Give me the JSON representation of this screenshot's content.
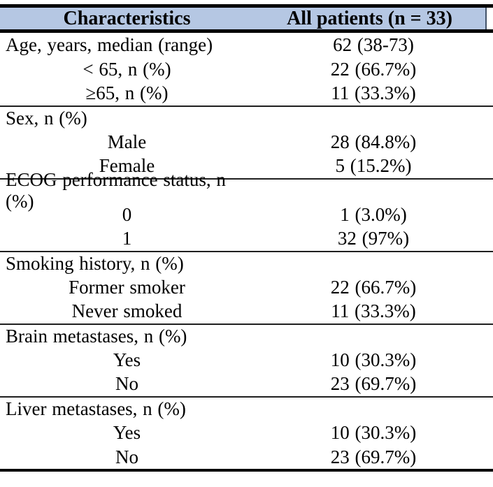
{
  "table": {
    "title_semantic": "Patient baseline characteristics table",
    "header": {
      "col1": "Characteristics",
      "col2": "All patients (n = 33)"
    },
    "rows": [
      {
        "label": "Age, years, median (range)",
        "value": "62 (38-73)"
      },
      {
        "label": "< 65, n (%)",
        "value": "22 (66.7%)"
      },
      {
        "label": "≥65, n (%)",
        "value": "11 (33.3%)"
      },
      {
        "label": "Sex, n (%)",
        "value": ""
      },
      {
        "label": "Male",
        "value": "28 (84.8%)"
      },
      {
        "label": "Female",
        "value": "5 (15.2%)"
      },
      {
        "label": "ECOG performance status, n (%)",
        "value": ""
      },
      {
        "label": "0",
        "value": "1 (3.0%)"
      },
      {
        "label": "1",
        "value": "32 (97%)"
      },
      {
        "label": "Smoking history, n (%)",
        "value": ""
      },
      {
        "label": "Former smoker",
        "value": "22 (66.7%)"
      },
      {
        "label": "Never smoked",
        "value": "11 (33.3%)"
      },
      {
        "label": "Brain metastases, n (%)",
        "value": ""
      },
      {
        "label": "Yes",
        "value": "10 (30.3%)"
      },
      {
        "label": "No",
        "value": "23 (69.7%)"
      },
      {
        "label": "Liver metastases, n (%)",
        "value": ""
      },
      {
        "label": "Yes",
        "value": "10 (30.3%)"
      },
      {
        "label": "No",
        "value": "23 (69.7%)"
      }
    ],
    "colors": {
      "header_background": "#b5c7e3",
      "rule_color": "#000000",
      "divider_color": "#1f1f1f",
      "text_color": "#000000"
    }
  }
}
